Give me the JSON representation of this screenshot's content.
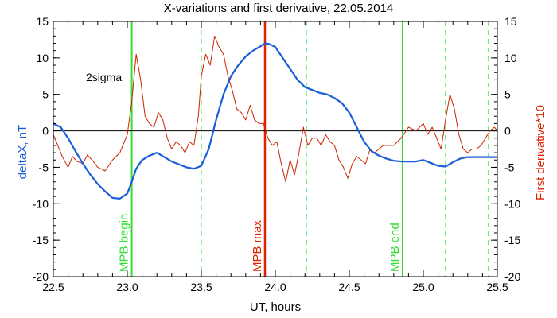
{
  "chart_data": {
    "type": "line",
    "title": "X-variations and first derivative, 22.05.2014",
    "xlabel": "UT, hours",
    "ylabel_left": "deltaX, nT",
    "ylabel_right": "First derivative*10",
    "xlim": [
      22.5,
      25.5
    ],
    "ylim": [
      -20,
      15
    ],
    "xticks": [
      22.5,
      23.0,
      23.5,
      24.0,
      24.5,
      25.0,
      25.5
    ],
    "xtick_labels": [
      "22.5",
      "23.0",
      "23.5",
      "24.0",
      "24.5",
      "25.0",
      "25.5"
    ],
    "yticks": [
      -20,
      -15,
      -10,
      -5,
      0,
      5,
      10,
      15
    ],
    "ytick_labels": [
      "-20",
      "-15",
      "-10",
      "-5",
      "0",
      "5",
      "10",
      "15"
    ],
    "sigma_level": 6,
    "sigma_label": "2sigma",
    "zero_line": 0,
    "series": [
      {
        "name": "deltaX, nT",
        "color": "#1a5fd6",
        "x": [
          22.5,
          22.55,
          22.6,
          22.65,
          22.7,
          22.75,
          22.8,
          22.85,
          22.9,
          22.95,
          23.0,
          23.03,
          23.06,
          23.1,
          23.15,
          23.2,
          23.25,
          23.3,
          23.35,
          23.4,
          23.45,
          23.5,
          23.55,
          23.6,
          23.65,
          23.7,
          23.75,
          23.8,
          23.85,
          23.9,
          23.93,
          23.96,
          24.0,
          24.05,
          24.1,
          24.15,
          24.2,
          24.25,
          24.3,
          24.35,
          24.4,
          24.45,
          24.5,
          24.55,
          24.6,
          24.65,
          24.7,
          24.75,
          24.8,
          24.85,
          24.9,
          24.95,
          25.0,
          25.05,
          25.1,
          25.15,
          25.2,
          25.25,
          25.3,
          25.35,
          25.4,
          25.45,
          25.5
        ],
        "values": [
          1.0,
          0.5,
          -1.0,
          -2.8,
          -4.5,
          -6.0,
          -7.3,
          -8.3,
          -9.2,
          -9.3,
          -8.6,
          -7.0,
          -5.2,
          -4.0,
          -3.4,
          -3.0,
          -3.6,
          -4.2,
          -4.6,
          -5.0,
          -5.2,
          -4.8,
          -2.5,
          1.5,
          5.0,
          7.5,
          9.0,
          10.2,
          11.0,
          11.6,
          12.0,
          11.9,
          11.5,
          10.0,
          8.5,
          7.0,
          6.0,
          5.6,
          5.2,
          5.0,
          4.5,
          3.8,
          2.5,
          0.5,
          -1.5,
          -2.8,
          -3.4,
          -3.8,
          -4.1,
          -4.2,
          -4.2,
          -4.2,
          -4.0,
          -4.4,
          -4.8,
          -4.9,
          -4.3,
          -3.8,
          -3.6,
          -3.6,
          -3.6,
          -3.6,
          -3.6
        ]
      },
      {
        "name": "First derivative*10",
        "color": "#cc2200",
        "x": [
          22.5,
          22.53,
          22.56,
          22.6,
          22.63,
          22.66,
          22.7,
          22.73,
          22.77,
          22.8,
          22.85,
          22.9,
          22.95,
          23.0,
          23.03,
          23.06,
          23.09,
          23.12,
          23.15,
          23.18,
          23.21,
          23.24,
          23.27,
          23.3,
          23.33,
          23.36,
          23.39,
          23.42,
          23.45,
          23.48,
          23.5,
          23.53,
          23.56,
          23.59,
          23.62,
          23.65,
          23.68,
          23.71,
          23.74,
          23.77,
          23.8,
          23.83,
          23.86,
          23.89,
          23.92,
          23.95,
          23.98,
          24.01,
          24.04,
          24.07,
          24.1,
          24.13,
          24.16,
          24.19,
          24.22,
          24.25,
          24.28,
          24.31,
          24.34,
          24.37,
          24.4,
          24.43,
          24.46,
          24.49,
          24.52,
          24.55,
          24.58,
          24.61,
          24.64,
          24.67,
          24.7,
          24.73,
          24.76,
          24.8,
          24.85,
          24.9,
          24.95,
          25.0,
          25.03,
          25.06,
          25.09,
          25.12,
          25.15,
          25.18,
          25.21,
          25.24,
          25.27,
          25.3,
          25.33,
          25.36,
          25.39,
          25.42,
          25.45,
          25.48,
          25.5
        ],
        "values": [
          -0.5,
          -2.0,
          -3.5,
          -5.0,
          -3.5,
          -4.2,
          -4.5,
          -3.3,
          -4.2,
          -5.0,
          -5.5,
          -4.0,
          -3.0,
          -0.5,
          4.0,
          10.5,
          7.0,
          2.0,
          1.0,
          0.5,
          2.5,
          1.5,
          -1.0,
          -2.5,
          -1.5,
          -2.0,
          -3.0,
          -1.5,
          -2.0,
          2.0,
          7.5,
          10.5,
          9.0,
          13.0,
          11.5,
          10.5,
          7.5,
          5.5,
          3.0,
          2.5,
          1.5,
          3.5,
          1.5,
          1.0,
          1.0,
          -1.0,
          -2.0,
          -1.5,
          -4.5,
          -7.0,
          -4.0,
          -6.0,
          -3.0,
          0.5,
          -2.0,
          -1.0,
          -1.0,
          -2.0,
          -0.5,
          -1.5,
          -2.0,
          -4.0,
          -5.0,
          -6.5,
          -4.5,
          -3.5,
          -4.0,
          -4.5,
          -2.5,
          -3.0,
          -2.5,
          -2.0,
          -2.0,
          -2.0,
          -1.0,
          0.5,
          0.0,
          1.0,
          -0.5,
          0.5,
          -1.0,
          -2.5,
          1.5,
          5.0,
          3.0,
          -0.5,
          -2.5,
          -3.0,
          -2.5,
          -2.5,
          -2.0,
          -1.0,
          0.0,
          0.5,
          0.0
        ]
      }
    ],
    "markers": [
      {
        "x": 23.03,
        "label": "MPB begin",
        "color": "#33dd33",
        "style": "solid",
        "width": 2
      },
      {
        "x": 23.93,
        "label": "MPB max",
        "color": "#dd2200",
        "style": "solid",
        "width": 2.5
      },
      {
        "x": 24.86,
        "label": "MPB end",
        "color": "#33dd33",
        "style": "solid",
        "width": 2
      },
      {
        "x": 23.5,
        "label": "",
        "color": "#33dd33",
        "style": "dashed",
        "width": 1
      },
      {
        "x": 24.21,
        "label": "",
        "color": "#33dd33",
        "style": "dashed",
        "width": 1
      },
      {
        "x": 25.15,
        "label": "",
        "color": "#33dd33",
        "style": "dashed",
        "width": 1
      },
      {
        "x": 25.44,
        "label": "",
        "color": "#33dd33",
        "style": "dashed",
        "width": 1
      }
    ]
  }
}
